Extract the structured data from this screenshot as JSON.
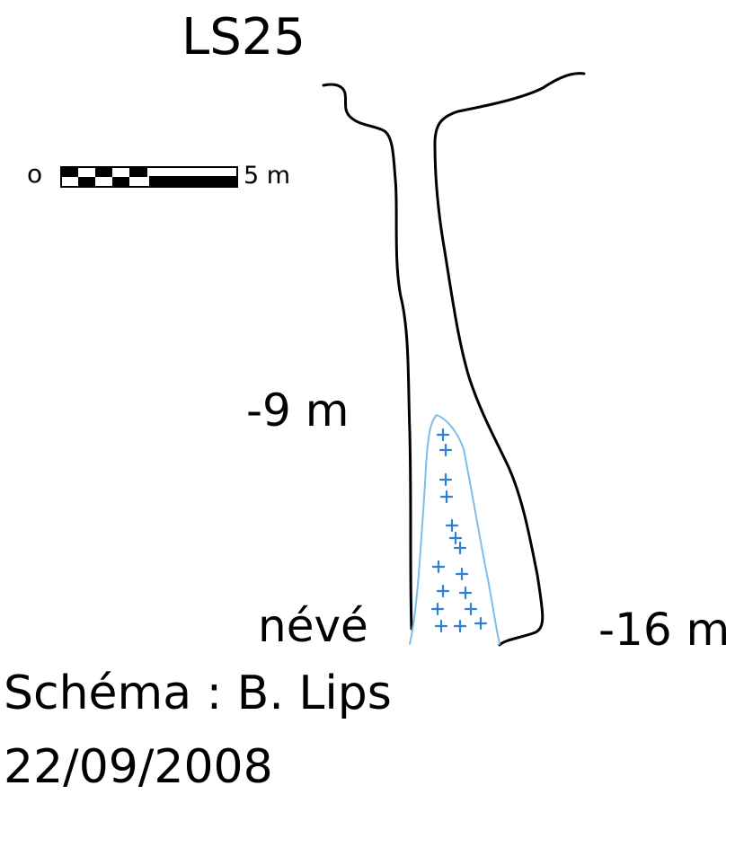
{
  "title": "LS25",
  "scale_bar": {
    "start_label": "o",
    "end_label": "5 m"
  },
  "depth_labels": {
    "upper": "-9 m",
    "bottom": "-16 m"
  },
  "feature_label": "névé",
  "credit": "Schéma : B. Lips",
  "date": "22/09/2008",
  "colors": {
    "outline": "#000000",
    "snow": "#2f7fd8",
    "snow_outline": "#7fbde8"
  },
  "icons": {
    "snow_marker": "plus-icon"
  }
}
